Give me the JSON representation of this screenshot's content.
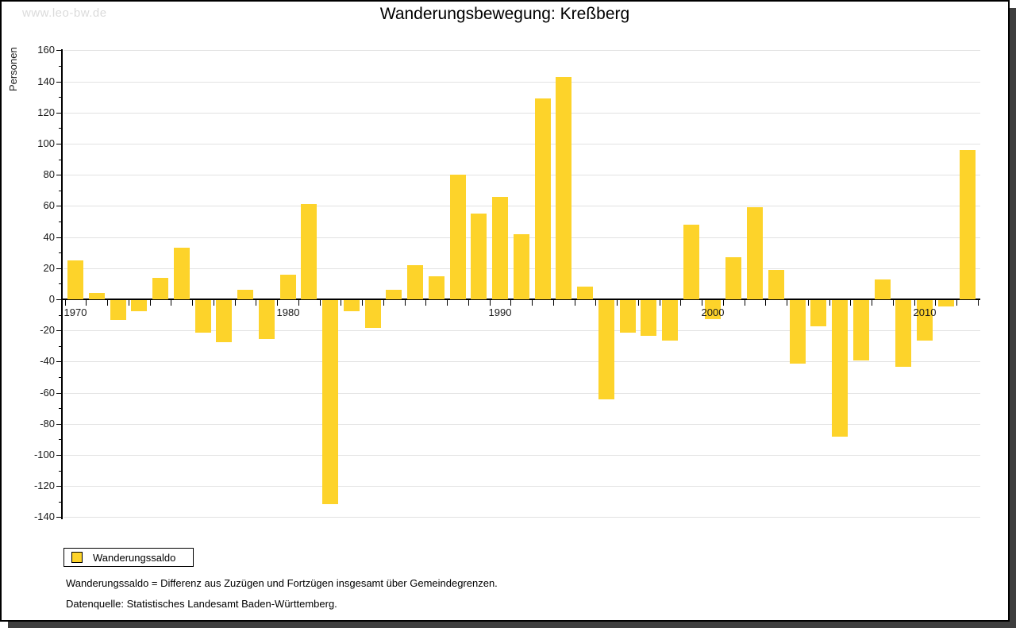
{
  "window": {
    "watermark": "www.leo-bw.de",
    "title": "Wanderungsbewegung: Kreßberg"
  },
  "legend": {
    "label": "Wanderungssaldo"
  },
  "footnotes": {
    "definition": "Wanderungssaldo = Differenz aus Zuzügen und Fortzügen insgesamt über Gemeindegrenzen.",
    "source": "Datenquelle: Statistisches Landesamt Baden-Württemberg."
  },
  "chart_data": {
    "type": "bar",
    "title": "Wanderungsbewegung: Kreßberg",
    "xlabel": "",
    "ylabel": "Personen",
    "categories": [
      1970,
      1971,
      1972,
      1973,
      1974,
      1975,
      1976,
      1977,
      1978,
      1979,
      1980,
      1981,
      1982,
      1983,
      1984,
      1985,
      1986,
      1987,
      1988,
      1989,
      1990,
      1991,
      1992,
      1993,
      1994,
      1995,
      1996,
      1997,
      1998,
      1999,
      2000,
      2001,
      2002,
      2003,
      2004,
      2005,
      2006,
      2007,
      2008,
      2009,
      2010,
      2011,
      2012
    ],
    "series": [
      {
        "name": "Wanderungssaldo",
        "values": [
          25,
          4,
          -13,
          -7,
          14,
          33,
          -21,
          -27,
          6,
          -25,
          16,
          61,
          -131,
          -7,
          -18,
          6,
          22,
          15,
          80,
          55,
          66,
          42,
          129,
          143,
          8,
          -64,
          -21,
          -23,
          -26,
          48,
          -12,
          27,
          59,
          19,
          -41,
          -17,
          -88,
          -39,
          13,
          -43,
          -26,
          -4,
          96
        ]
      }
    ],
    "ylim": [
      -140,
      160
    ],
    "ytick_step": 20,
    "ytick_minor_step": 10,
    "x_labeled_ticks": [
      1970,
      1980,
      1990,
      2000,
      2010
    ],
    "grid": true,
    "bar_color": "#fdd32a",
    "legend_position": "bottom-left"
  }
}
